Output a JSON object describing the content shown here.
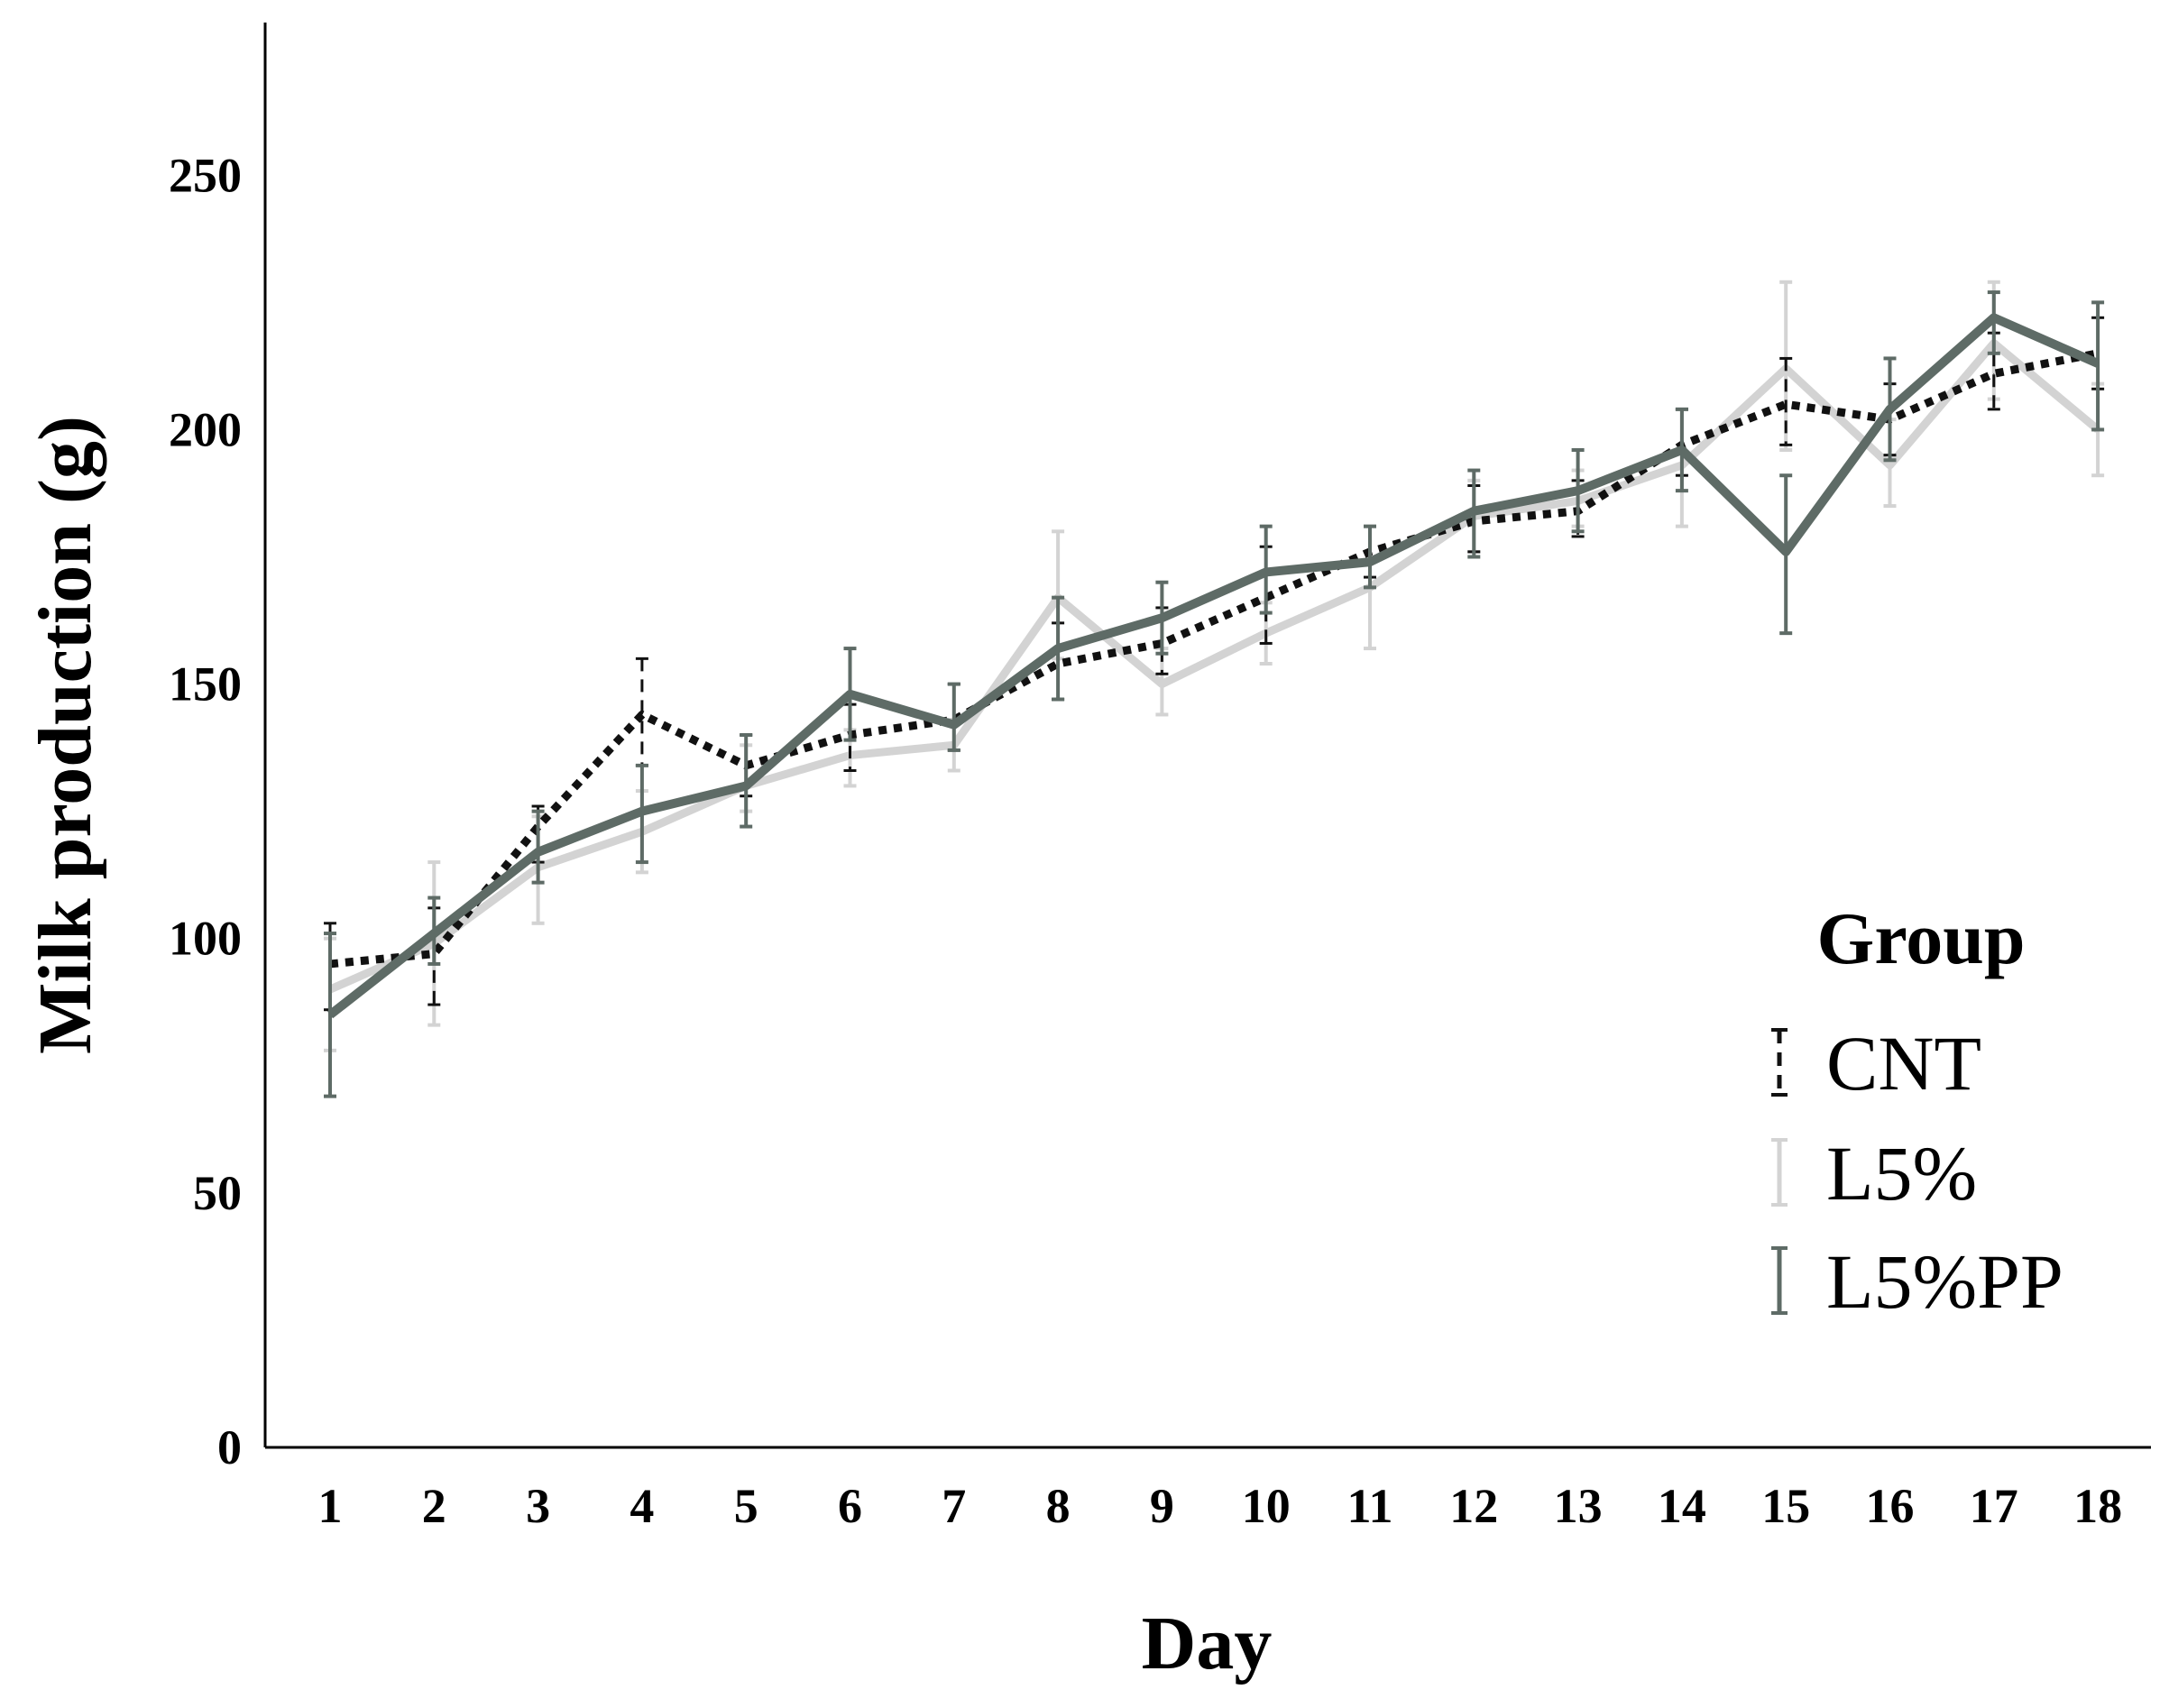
{
  "chart_data": {
    "type": "line",
    "title": "",
    "xlabel": "Day",
    "ylabel": "Milk production (g)",
    "x": [
      1,
      2,
      3,
      4,
      5,
      6,
      7,
      8,
      9,
      10,
      11,
      12,
      13,
      14,
      15,
      16,
      17,
      18
    ],
    "x_tick_labels": [
      "1",
      "2",
      "3",
      "4",
      "5",
      "6",
      "7",
      "8",
      "9",
      "10",
      "11",
      "12",
      "13",
      "14",
      "15",
      "16",
      "17",
      "18"
    ],
    "ylim": [
      0,
      280
    ],
    "y_ticks": [
      0,
      50,
      100,
      150,
      200,
      250
    ],
    "y_tick_labels": [
      "0",
      "50",
      "100",
      "150",
      "200",
      "250"
    ],
    "grid": false,
    "legend": {
      "title": "Group",
      "position": "right"
    },
    "series": [
      {
        "name": "CNT",
        "style": "dotted",
        "color": "#111111",
        "values": [
          95,
          97,
          122,
          144,
          134,
          140,
          143,
          154,
          158,
          167,
          176,
          182,
          184,
          197,
          205,
          202,
          211,
          215
        ],
        "err_low": [
          86,
          87,
          115,
          134,
          128,
          133,
          137,
          147,
          152,
          158,
          171,
          176,
          179,
          191,
          197,
          195,
          204,
          208
        ],
        "err_high": [
          103,
          106,
          126,
          155,
          140,
          146,
          150,
          162,
          165,
          177,
          181,
          189,
          190,
          204,
          214,
          209,
          219,
          222
        ]
      },
      {
        "name": "L5%",
        "style": "solid",
        "color": "#d3d3d3",
        "values": [
          90,
          99,
          114,
          121,
          130,
          136,
          138,
          167,
          150,
          160,
          169,
          183,
          186,
          193,
          212,
          193,
          217,
          200
        ],
        "err_low": [
          78,
          83,
          103,
          113,
          125,
          130,
          133,
          155,
          144,
          154,
          157,
          176,
          181,
          181,
          196,
          185,
          206,
          191
        ],
        "err_high": [
          100,
          115,
          124,
          129,
          138,
          141,
          143,
          180,
          157,
          166,
          181,
          190,
          192,
          204,
          229,
          202,
          229,
          209
        ]
      },
      {
        "name": "L5%PP",
        "style": "solid",
        "color": "#5e6b66",
        "values": [
          85,
          101,
          117,
          125,
          130,
          148,
          142,
          157,
          163,
          172,
          174,
          184,
          188,
          196,
          176,
          204,
          222,
          213
        ],
        "err_low": [
          69,
          95,
          111,
          115,
          122,
          139,
          137,
          147,
          156,
          164,
          169,
          175,
          180,
          188,
          160,
          194,
          215,
          200
        ],
        "err_high": [
          101,
          108,
          125,
          134,
          140,
          157,
          150,
          167,
          170,
          181,
          181,
          192,
          196,
          204,
          191,
          214,
          227,
          225
        ]
      }
    ]
  }
}
